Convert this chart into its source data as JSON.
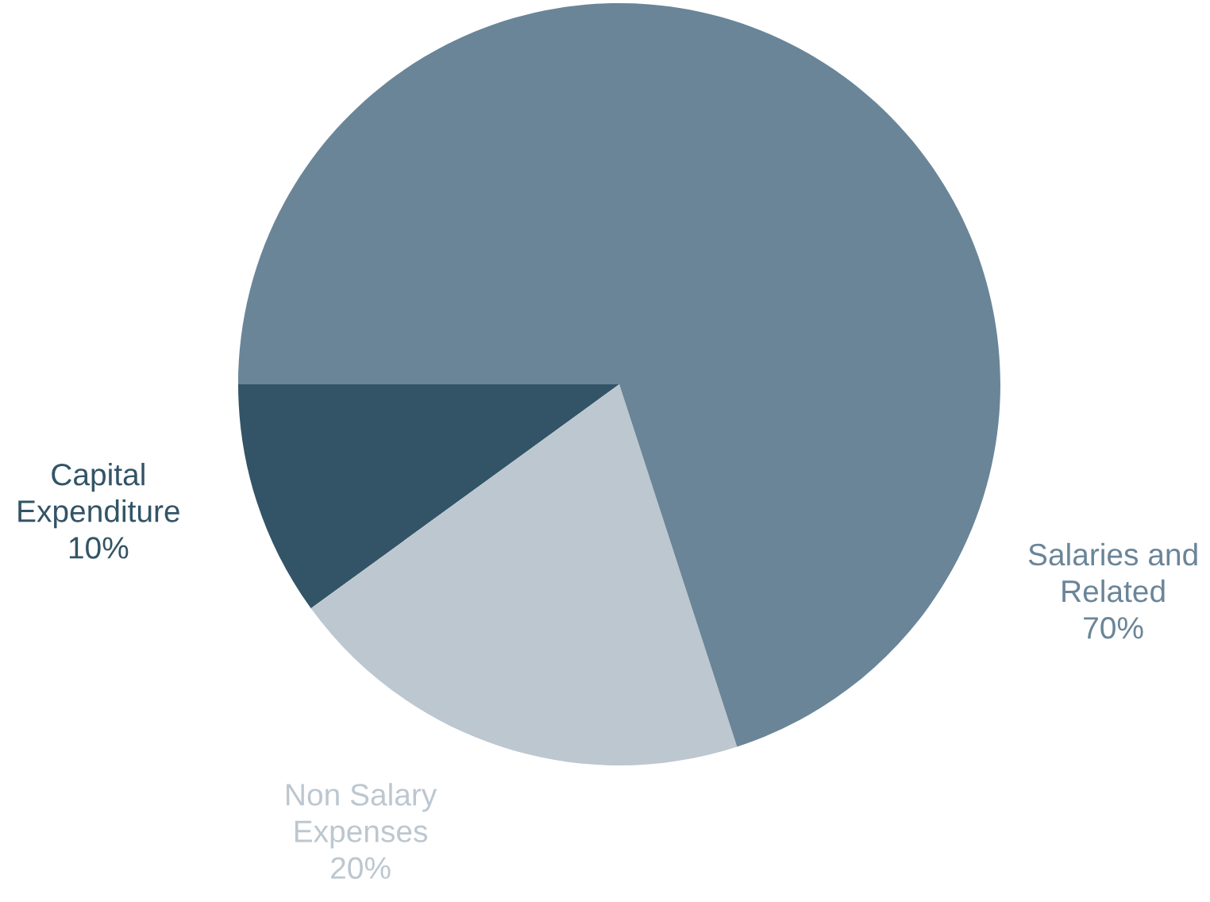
{
  "chart_data": {
    "type": "pie",
    "categories": [
      "Capital\nExpenditure",
      "Non Salary\nExpenses",
      "Salaries and\nRelated"
    ],
    "values": [
      10,
      20,
      70
    ],
    "colors": [
      "#335467",
      "#bcc7d0",
      "#6a8598"
    ],
    "value_labels": [
      "10%",
      "20%",
      "70%"
    ]
  }
}
